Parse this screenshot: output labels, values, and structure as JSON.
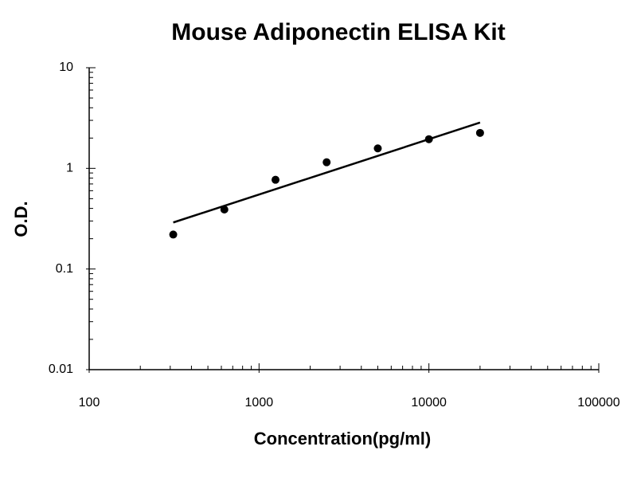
{
  "chart_data": {
    "type": "scatter",
    "title": "Mouse Adiponectin ELISA Kit",
    "x_label": "Concentration(pg/ml)",
    "y_label": "O.D.",
    "x": [
      312.5,
      625,
      1250,
      2500,
      5000,
      10000,
      20000
    ],
    "values": [
      0.22,
      0.39,
      0.77,
      1.15,
      1.58,
      1.95,
      2.25
    ],
    "color": "#000000",
    "trendline": {
      "x": [
        312.5,
        20000
      ],
      "values": [
        0.29,
        2.85
      ],
      "color": "#000000"
    },
    "xlim": [
      100,
      100000
    ],
    "xticks": [
      100,
      1000,
      10000,
      100000
    ],
    "ylim": [
      0.01,
      10
    ],
    "yticks": [
      0.01,
      0.1,
      1,
      10
    ],
    "xscale": "log",
    "yscale": "log",
    "grid": false
  }
}
